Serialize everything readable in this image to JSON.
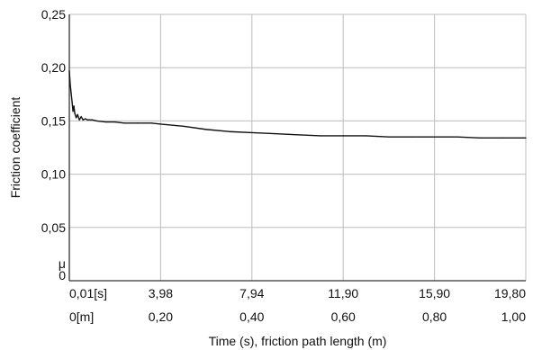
{
  "chart_data": {
    "type": "line",
    "ylabel": "Friction coefficient",
    "y_origin_label": "μ",
    "xlabel": "Time (s), friction path length (m)",
    "ylim": [
      0,
      0.25
    ],
    "y_ticks": [
      0,
      0.05,
      0.1,
      0.15,
      0.2,
      0.25
    ],
    "y_tick_labels": [
      "0",
      "0,05",
      "0,10",
      "0,15",
      "0,20",
      "0,25"
    ],
    "xlim": [
      0,
      1.0
    ],
    "x_ticks": [
      0,
      0.2,
      0.4,
      0.6,
      0.8,
      1.0
    ],
    "x_time_labels": [
      "0,01[s]",
      "3,98",
      "7,94",
      "11,90",
      "15,90",
      "19,80"
    ],
    "x_path_labels": [
      "0[m]",
      "0,20",
      "0,40",
      "0,60",
      "0,80",
      "1,00"
    ],
    "grid": true,
    "colors": {
      "line": "#111111",
      "grid": "#bdbdbd",
      "axis": "#333333"
    },
    "series": [
      {
        "x": [
          0.0,
          0.002,
          0.004,
          0.006,
          0.008,
          0.01,
          0.012,
          0.015,
          0.018,
          0.022,
          0.026,
          0.03,
          0.035,
          0.04,
          0.05,
          0.06,
          0.08,
          0.1,
          0.12,
          0.15,
          0.18,
          0.2,
          0.25,
          0.3,
          0.35,
          0.4,
          0.45,
          0.5,
          0.55,
          0.6,
          0.65,
          0.7,
          0.75,
          0.8,
          0.85,
          0.9,
          0.95,
          1.0
        ],
        "y": [
          0.197,
          0.184,
          0.176,
          0.168,
          0.159,
          0.164,
          0.157,
          0.153,
          0.156,
          0.151,
          0.154,
          0.151,
          0.152,
          0.151,
          0.151,
          0.15,
          0.149,
          0.149,
          0.148,
          0.148,
          0.148,
          0.147,
          0.145,
          0.142,
          0.14,
          0.139,
          0.138,
          0.137,
          0.136,
          0.136,
          0.136,
          0.135,
          0.135,
          0.135,
          0.135,
          0.134,
          0.134,
          0.134
        ]
      }
    ]
  }
}
